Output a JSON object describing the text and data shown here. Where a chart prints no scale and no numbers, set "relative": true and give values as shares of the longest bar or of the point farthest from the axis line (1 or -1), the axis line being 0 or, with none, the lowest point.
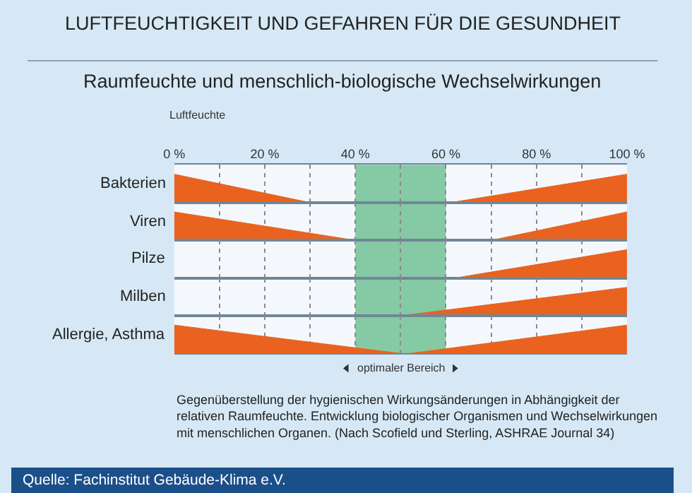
{
  "chart_data": [
    {
      "type": "area",
      "relative": true,
      "title": "LUFTFEUCHTIGKEIT UND GEFAHREN FÜR DIE GESUNDHEIT",
      "subtitle": "Raumfeuchte und menschlich-biologische Wechselwirkungen",
      "xlabel": "Luftfeuchte",
      "ylabel": "Bakterien",
      "x": [
        0,
        30,
        61,
        100
      ],
      "series": [
        {
          "color": "#e9621f",
          "values": [
            1,
            0,
            0,
            1
          ]
        }
      ],
      "xlim": [
        0,
        100
      ],
      "xticks": [
        {
          "value": 0,
          "label": "0 %"
        },
        {
          "value": 10,
          "label": null
        },
        {
          "value": 20,
          "label": "20 %"
        },
        {
          "value": 30,
          "label": null
        },
        {
          "value": 40,
          "label": "40 %"
        },
        {
          "value": 50,
          "label": null
        },
        {
          "value": 60,
          "label": "60 %"
        },
        {
          "value": 70,
          "label": null
        },
        {
          "value": 80,
          "label": "80 %"
        },
        {
          "value": 90,
          "label": null
        },
        {
          "value": 100,
          "label": "100 %"
        }
      ],
      "grid": "x",
      "tick_labels": "x",
      "bands": [
        {
          "axis": "x",
          "from": 40,
          "to": 60,
          "color": "#2ca35c"
        }
      ]
    },
    {
      "type": "area",
      "relative": true,
      "ylabel": "Viren",
      "x": [
        0,
        40,
        70,
        100
      ],
      "series": [
        {
          "color": "#e9621f",
          "values": [
            1,
            0,
            0,
            1
          ]
        }
      ],
      "xlim": [
        0,
        100
      ],
      "grid": "x",
      "tick_labels": false,
      "bands": [
        {
          "axis": "x",
          "from": 40,
          "to": 60,
          "color": "#2ca35c"
        }
      ]
    },
    {
      "type": "area",
      "relative": true,
      "ylabel": "Pilze",
      "x": [
        0,
        62,
        100
      ],
      "series": [
        {
          "color": "#e9621f",
          "values": [
            0,
            0,
            1
          ]
        }
      ],
      "xlim": [
        0,
        100
      ],
      "grid": "x",
      "tick_labels": false,
      "bands": [
        {
          "axis": "x",
          "from": 40,
          "to": 60,
          "color": "#2ca35c"
        }
      ]
    },
    {
      "type": "area",
      "relative": true,
      "ylabel": "Milben",
      "x": [
        0,
        50,
        100
      ],
      "series": [
        {
          "color": "#e9621f",
          "values": [
            0,
            0,
            1
          ]
        }
      ],
      "xlim": [
        0,
        100
      ],
      "grid": "x",
      "tick_labels": false,
      "bands": [
        {
          "axis": "x",
          "from": 40,
          "to": 60,
          "color": "#2ca35c"
        }
      ]
    },
    {
      "type": "area",
      "relative": true,
      "ylabel": "Allergie, Asthma",
      "x": [
        0,
        50,
        52,
        100
      ],
      "series": [
        {
          "color": "#e9621f",
          "values": [
            1,
            0,
            0,
            1
          ]
        }
      ],
      "xlim": [
        0,
        100
      ],
      "grid": "x",
      "tick_labels": false,
      "bands": [
        {
          "axis": "x",
          "from": 40,
          "to": 60,
          "color": "#2ca35c",
          "label": "optimaler Bereich"
        }
      ],
      "annotations": [
        "Gegenüberstellung der hygienischen Wirkungsänderungen in Abhängigkeit der relativen Raumfeuchte. Entwicklung biologischer Organismen und Wechselwirkungen mit menschlichen Organen. (Nach Scofield und Sterling, ASHRAE Journal 34)",
        "Quelle: Fachinstitut Gebäude-Klima e.V."
      ]
    }
  ]
}
